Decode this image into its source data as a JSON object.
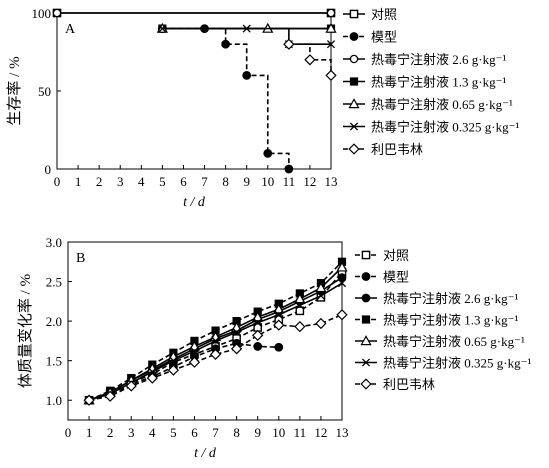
{
  "chart_data": [
    {
      "type": "line",
      "panel_label": "A",
      "xlabel": "t / d",
      "ylabel": "生存率 / %",
      "xlim": [
        0,
        13
      ],
      "ylim": [
        0,
        100
      ],
      "xticks": [
        0,
        1,
        2,
        3,
        4,
        5,
        6,
        7,
        8,
        9,
        10,
        11,
        12,
        13
      ],
      "yticks": [
        0,
        50,
        100
      ],
      "grid": false,
      "legend_position": "right",
      "step": true,
      "series": [
        {
          "name": "对照",
          "marker": "square-open",
          "dash": "solid",
          "points": [
            [
              0,
              100
            ],
            [
              13,
              100
            ]
          ]
        },
        {
          "name": "模型",
          "marker": "circle-filled",
          "dash": "dashed",
          "points": [
            [
              5,
              90
            ],
            [
              7,
              90
            ],
            [
              8,
              80
            ],
            [
              9,
              60
            ],
            [
              10,
              10
            ],
            [
              11,
              0
            ]
          ]
        },
        {
          "name": "热毒宁注射液 2.6 g·kg⁻¹",
          "marker": "circle-open",
          "dash": "solid",
          "points": [
            [
              0,
              100
            ],
            [
              13,
              100
            ]
          ]
        },
        {
          "name": "热毒宁注射液 1.3 g·kg⁻¹",
          "marker": "square-filled",
          "dash": "solid",
          "points": [
            [
              5,
              90
            ],
            [
              13,
              90
            ]
          ]
        },
        {
          "name": "热毒宁注射液 0.65 g·kg⁻¹",
          "marker": "triangle-open",
          "dash": "solid",
          "points": [
            [
              5,
              90
            ],
            [
              10,
              90
            ],
            [
              13,
              90
            ]
          ]
        },
        {
          "name": "热毒宁注射液 0.325 g·kg⁻¹",
          "marker": "x",
          "dash": "solid",
          "points": [
            [
              5,
              90
            ],
            [
              9,
              90
            ],
            [
              11,
              80
            ],
            [
              13,
              80
            ]
          ]
        },
        {
          "name": "利巴韦林",
          "marker": "diamond-open",
          "dash": "dashed",
          "points": [
            [
              11,
              80
            ],
            [
              12,
              70
            ],
            [
              13,
              60
            ]
          ]
        }
      ]
    },
    {
      "type": "line",
      "panel_label": "B",
      "xlabel": "t / d",
      "ylabel": "体质量变化率 / %",
      "xlim": [
        0,
        13
      ],
      "ylim": [
        0.75,
        3.0
      ],
      "xticks": [
        0,
        1,
        2,
        3,
        4,
        5,
        6,
        7,
        8,
        9,
        10,
        11,
        12,
        13
      ],
      "yticks": [
        "1.0",
        "1.5",
        "2.0",
        "2.5",
        "3.0"
      ],
      "grid": false,
      "legend_position": "right",
      "step": false,
      "series": [
        {
          "name": "对照",
          "marker": "square-open",
          "dash": "dashed",
          "points": [
            [
              1,
              1.0
            ],
            [
              2,
              1.08
            ],
            [
              3,
              1.22
            ],
            [
              4,
              1.33
            ],
            [
              5,
              1.48
            ],
            [
              6,
              1.58
            ],
            [
              7,
              1.68
            ],
            [
              8,
              1.78
            ],
            [
              9,
              1.92
            ],
            [
              10,
              2.02
            ],
            [
              11,
              2.13
            ],
            [
              12,
              2.3
            ],
            [
              13,
              2.62
            ]
          ]
        },
        {
          "name": "模型",
          "marker": "circle-filled",
          "dash": "dashed",
          "points": [
            [
              1,
              1.0
            ],
            [
              2,
              1.07
            ],
            [
              3,
              1.2
            ],
            [
              4,
              1.3
            ],
            [
              5,
              1.42
            ],
            [
              6,
              1.55
            ],
            [
              7,
              1.65
            ],
            [
              8,
              1.72
            ],
            [
              9,
              1.68
            ],
            [
              10,
              1.67
            ]
          ]
        },
        {
          "name": "热毒宁注射液 2.6 g·kg⁻¹",
          "marker": "circle-filled",
          "dash": "solid",
          "points": [
            [
              1,
              1.0
            ],
            [
              2,
              1.1
            ],
            [
              3,
              1.25
            ],
            [
              4,
              1.38
            ],
            [
              5,
              1.52
            ],
            [
              6,
              1.65
            ],
            [
              7,
              1.78
            ],
            [
              8,
              1.88
            ],
            [
              9,
              2.02
            ],
            [
              10,
              2.12
            ],
            [
              11,
              2.25
            ],
            [
              12,
              2.38
            ],
            [
              13,
              2.55
            ]
          ]
        },
        {
          "name": "热毒宁注射液 1.3 g·kg⁻¹",
          "marker": "square-filled",
          "dash": "dashed",
          "points": [
            [
              1,
              1.0
            ],
            [
              2,
              1.12
            ],
            [
              3,
              1.28
            ],
            [
              4,
              1.45
            ],
            [
              5,
              1.6
            ],
            [
              6,
              1.75
            ],
            [
              7,
              1.88
            ],
            [
              8,
              2.0
            ],
            [
              9,
              2.12
            ],
            [
              10,
              2.22
            ],
            [
              11,
              2.35
            ],
            [
              12,
              2.48
            ],
            [
              13,
              2.75
            ]
          ]
        },
        {
          "name": "热毒宁注射液 0.65 g·kg⁻¹",
          "marker": "triangle-open",
          "dash": "solid",
          "points": [
            [
              1,
              1.0
            ],
            [
              2,
              1.1
            ],
            [
              3,
              1.25
            ],
            [
              4,
              1.4
            ],
            [
              5,
              1.55
            ],
            [
              6,
              1.68
            ],
            [
              7,
              1.8
            ],
            [
              8,
              1.92
            ],
            [
              9,
              2.05
            ],
            [
              10,
              2.15
            ],
            [
              11,
              2.28
            ],
            [
              12,
              2.42
            ],
            [
              13,
              2.68
            ]
          ]
        },
        {
          "name": "热毒宁注射液 0.325 g·kg⁻¹",
          "marker": "x",
          "dash": "solid",
          "points": [
            [
              1,
              1.0
            ],
            [
              2,
              1.08
            ],
            [
              3,
              1.22
            ],
            [
              4,
              1.36
            ],
            [
              5,
              1.5
            ],
            [
              6,
              1.62
            ],
            [
              7,
              1.75
            ],
            [
              8,
              1.86
            ],
            [
              9,
              1.98
            ],
            [
              10,
              2.08
            ],
            [
              11,
              2.2
            ],
            [
              12,
              2.32
            ],
            [
              13,
              2.48
            ]
          ]
        },
        {
          "name": "利巴韦林",
          "marker": "diamond-open",
          "dash": "dashed",
          "points": [
            [
              1,
              1.0
            ],
            [
              2,
              1.05
            ],
            [
              3,
              1.18
            ],
            [
              4,
              1.28
            ],
            [
              5,
              1.38
            ],
            [
              6,
              1.48
            ],
            [
              7,
              1.58
            ],
            [
              8,
              1.65
            ],
            [
              9,
              1.82
            ],
            [
              10,
              1.95
            ],
            [
              11,
              1.93
            ],
            [
              12,
              1.97
            ],
            [
              13,
              2.08
            ]
          ]
        }
      ]
    }
  ]
}
